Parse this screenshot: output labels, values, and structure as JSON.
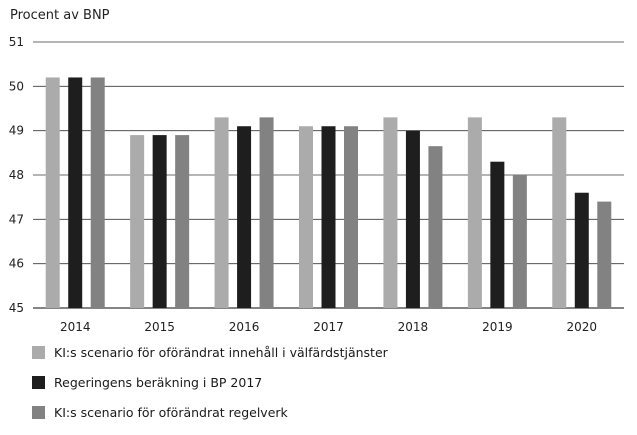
{
  "chart_data": {
    "type": "bar",
    "title": "",
    "ylabel": "Procent av BNP",
    "xlabel": "",
    "ylim": [
      45,
      51
    ],
    "yticks": [
      45,
      46,
      47,
      48,
      49,
      50,
      51
    ],
    "grid": "horizontal",
    "legend_position": "bottom-left",
    "categories": [
      "2014",
      "2015",
      "2016",
      "2017",
      "2018",
      "2019",
      "2020"
    ],
    "series": [
      {
        "name": "KI:s scenario för oförändrat innehåll i välfärdstjänster",
        "color": "#ababab",
        "values": [
          50.2,
          48.9,
          49.3,
          49.1,
          49.3,
          49.3,
          49.3
        ]
      },
      {
        "name": "Regeringens beräkning i BP 2017",
        "color": "#1e1e1e",
        "values": [
          50.2,
          48.9,
          49.1,
          49.1,
          49.0,
          48.3,
          47.6
        ]
      },
      {
        "name": "KI:s scenario för oförändrat regelverk",
        "color": "#828282",
        "values": [
          50.2,
          48.9,
          49.3,
          49.1,
          48.65,
          48.0,
          47.4
        ]
      }
    ]
  }
}
